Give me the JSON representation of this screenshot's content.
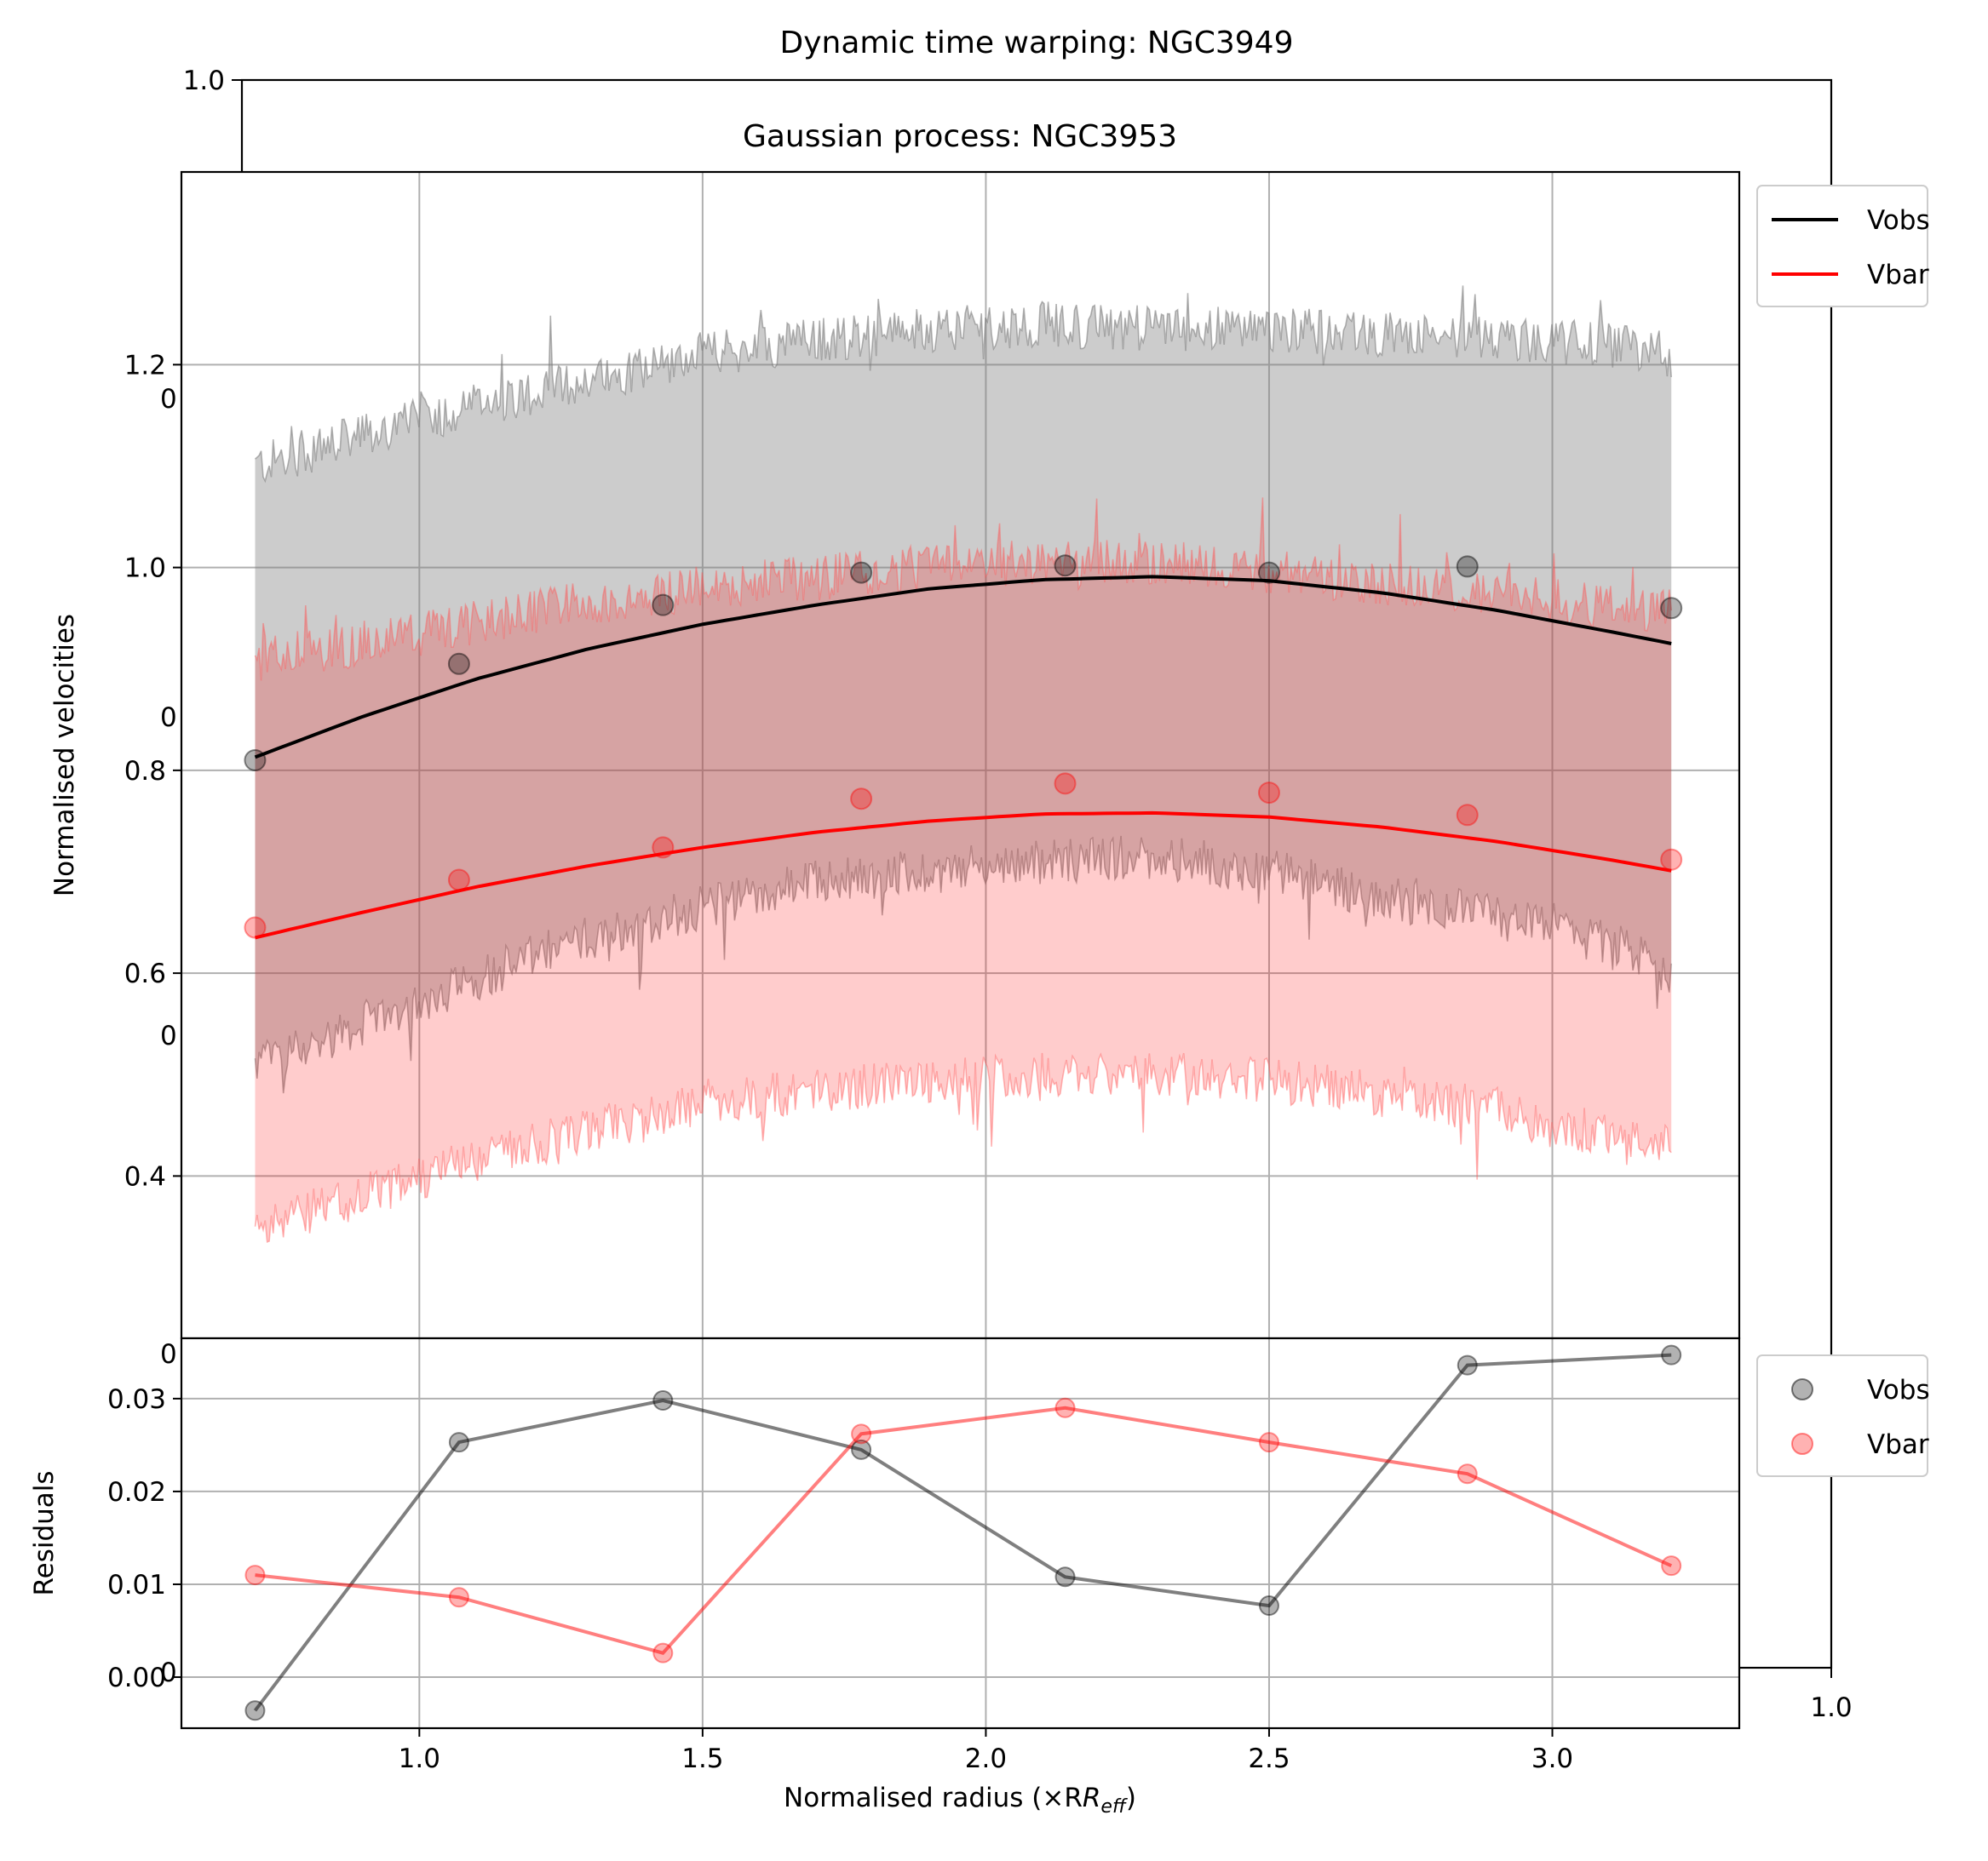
{
  "figure": {
    "back_title": "Dynamic time warping: NGC3949",
    "front_title": "Gaussian process: NGC3953",
    "back_axis": {
      "left_top_tick": "1.0",
      "right_bottom_tick": "1.0",
      "left_partial_ticks": [
        "0",
        "0",
        "0",
        "0",
        "0"
      ]
    }
  },
  "chart_data": [
    {
      "type": "line",
      "panel": "main",
      "xlabel": "",
      "ylabel": "Normalised velocities",
      "xlim": [
        0.58,
        3.33
      ],
      "ylim": [
        0.24,
        1.39
      ],
      "yticks": [
        0.4,
        0.6,
        0.8,
        1.0,
        1.2
      ],
      "xticks": [
        1.0,
        1.5,
        2.0,
        2.5,
        3.0
      ],
      "grid": true,
      "legend": {
        "placement": "outside-right-top",
        "entries": [
          {
            "label": "Vobs",
            "color": "#000000"
          },
          {
            "label": "Vbar",
            "color": "#ff0000"
          }
        ]
      },
      "x": [
        0.71,
        1.07,
        1.43,
        1.78,
        2.14,
        2.5,
        2.85,
        3.21
      ],
      "series": [
        {
          "name": "Vobs",
          "color": "#000000",
          "points": [
            0.81,
            0.905,
            0.963,
            0.995,
            1.002,
            0.995,
            1.001,
            0.96
          ],
          "fit_curve": {
            "x": [
              0.71,
              0.9,
              1.1,
              1.3,
              1.5,
              1.7,
              1.9,
              2.1,
              2.3,
              2.5,
              2.7,
              2.9,
              3.1,
              3.21
            ],
            "y": [
              0.813,
              0.853,
              0.89,
              0.92,
              0.944,
              0.963,
              0.979,
              0.988,
              0.991,
              0.987,
              0.975,
              0.958,
              0.937,
              0.925
            ]
          },
          "band": {
            "x": [
              0.71,
              0.9,
              1.1,
              1.3,
              1.5,
              1.7,
              1.9,
              2.1,
              2.3,
              2.5,
              2.7,
              2.9,
              3.1,
              3.21
            ],
            "upper": [
              1.1,
              1.13,
              1.16,
              1.185,
              1.21,
              1.225,
              1.235,
              1.24,
              1.235,
              1.235,
              1.23,
              1.225,
              1.22,
              1.21
            ],
            "lower": [
              0.51,
              0.55,
              0.595,
              0.635,
              0.665,
              0.69,
              0.7,
              0.71,
              0.715,
              0.7,
              0.675,
              0.655,
              0.63,
              0.6
            ]
          }
        },
        {
          "name": "Vbar",
          "color": "#ff0000",
          "points": [
            0.645,
            0.692,
            0.724,
            0.772,
            0.787,
            0.778,
            0.756,
            0.712
          ],
          "fit_curve": {
            "x": [
              0.71,
              0.9,
              1.1,
              1.3,
              1.5,
              1.7,
              1.9,
              2.1,
              2.3,
              2.5,
              2.7,
              2.9,
              3.1,
              3.21
            ],
            "y": [
              0.635,
              0.66,
              0.685,
              0.706,
              0.724,
              0.739,
              0.75,
              0.757,
              0.758,
              0.754,
              0.744,
              0.73,
              0.712,
              0.701
            ]
          },
          "band": {
            "x": [
              0.71,
              0.9,
              1.1,
              1.3,
              1.5,
              1.7,
              1.9,
              2.1,
              2.3,
              2.5,
              2.7,
              2.9,
              3.1,
              3.21
            ],
            "upper": [
              0.91,
              0.925,
              0.945,
              0.965,
              0.98,
              0.99,
              1.0,
              1.005,
              1.005,
              0.995,
              0.985,
              0.975,
              0.96,
              0.96
            ],
            "lower": [
              0.35,
              0.38,
              0.415,
              0.445,
              0.47,
              0.485,
              0.495,
              0.5,
              0.5,
              0.495,
              0.48,
              0.465,
              0.44,
              0.43
            ]
          }
        }
      ]
    },
    {
      "type": "line",
      "panel": "residuals",
      "xlabel": "Normalised radius (×R",
      "xlabel_sub": "eff",
      "xlabel_close": ")",
      "ylabel": "Residuals",
      "xlim": [
        0.58,
        3.33
      ],
      "ylim": [
        -0.0055,
        0.0365
      ],
      "yticks": [
        0.0,
        0.01,
        0.02,
        0.03
      ],
      "yticklabels": [
        "0.00",
        "0.01",
        "0.02",
        "0.03"
      ],
      "xticks": [
        1.0,
        1.5,
        2.0,
        2.5,
        3.0
      ],
      "xticklabels": [
        "1.0",
        "1.5",
        "2.0",
        "2.5",
        "3.0"
      ],
      "grid": true,
      "legend": {
        "placement": "outside-right-top",
        "entries": [
          {
            "label": "Vobs",
            "color": "#808080"
          },
          {
            "label": "Vbar",
            "color": "#ff8080"
          }
        ]
      },
      "x": [
        0.71,
        1.07,
        1.43,
        1.78,
        2.14,
        2.5,
        2.85,
        3.21
      ],
      "series": [
        {
          "name": "Vobs",
          "color": "#000000",
          "values": [
            -0.0036,
            0.0253,
            0.0298,
            0.0245,
            0.0108,
            0.0077,
            0.0336,
            0.0347
          ]
        },
        {
          "name": "Vbar",
          "color": "#ff0000",
          "values": [
            0.011,
            0.0086,
            0.0026,
            0.0262,
            0.029,
            0.0253,
            0.0219,
            0.012
          ]
        }
      ]
    }
  ]
}
